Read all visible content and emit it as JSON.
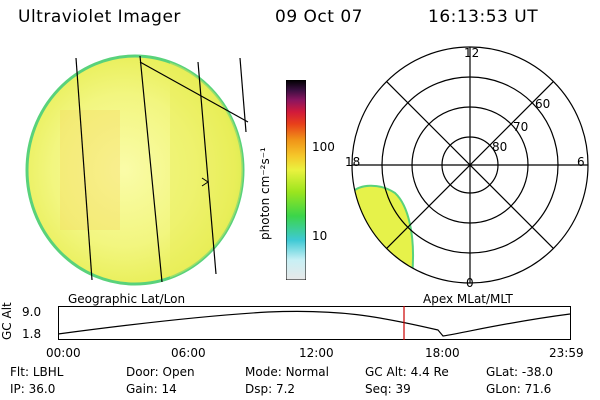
{
  "header": {
    "instrument": "Ultraviolet Imager",
    "date": "09 Oct 07",
    "time": "16:13:53 UT"
  },
  "colors": {
    "disk_fill": "#f1f77e",
    "disk_edge": "#59d27b",
    "auroral_fill": "#e6f24a",
    "timeline_marker": "#cc0000"
  },
  "colorbar": {
    "label": "photon cm⁻²s⁻¹",
    "ticks": [
      {
        "value": 100,
        "label": "100"
      },
      {
        "value": 10,
        "label": "10"
      }
    ],
    "scale": "log",
    "color_stops": [
      "#e8e8e8",
      "#c8f0f5",
      "#3ec9d4",
      "#3bd54a",
      "#9be51e",
      "#eaf23f",
      "#f5c82a",
      "#f09418",
      "#e8401a",
      "#d21a3a",
      "#8a1560",
      "#3a0f40",
      "#000000"
    ]
  },
  "polar_plot": {
    "mlt_labels": {
      "top": "12",
      "right": "6",
      "bottom": "0",
      "left": "18"
    },
    "lat_labels": [
      "80",
      "70",
      "60"
    ]
  },
  "map_labels": {
    "left": "Geographic Lat/Lon",
    "right": "Apex MLat/MLT"
  },
  "timeline": {
    "ylabel": "GC Alt",
    "ytick_top": "9.0",
    "ytick_bottom": "1.8",
    "xticks": [
      "00:00",
      "06:00",
      "12:00",
      "18:00",
      "23:59"
    ],
    "marker_time": "16:13:53"
  },
  "status": {
    "row1": [
      {
        "key": "Flt:",
        "value": "LBHL"
      },
      {
        "key": "Door:",
        "value": "Open"
      },
      {
        "key": "Mode:",
        "value": "Normal"
      },
      {
        "key": "GC Alt:",
        "value": "4.4 Re"
      },
      {
        "key": "GLat:",
        "value": "-38.0"
      }
    ],
    "row2": [
      {
        "key": "IP:",
        "value": "36.0"
      },
      {
        "key": "Gain:",
        "value": "14"
      },
      {
        "key": "Dsp:",
        "value": "7.2"
      },
      {
        "key": "Seq:",
        "value": "39"
      },
      {
        "key": "GLon:",
        "value": "71.6"
      }
    ]
  }
}
